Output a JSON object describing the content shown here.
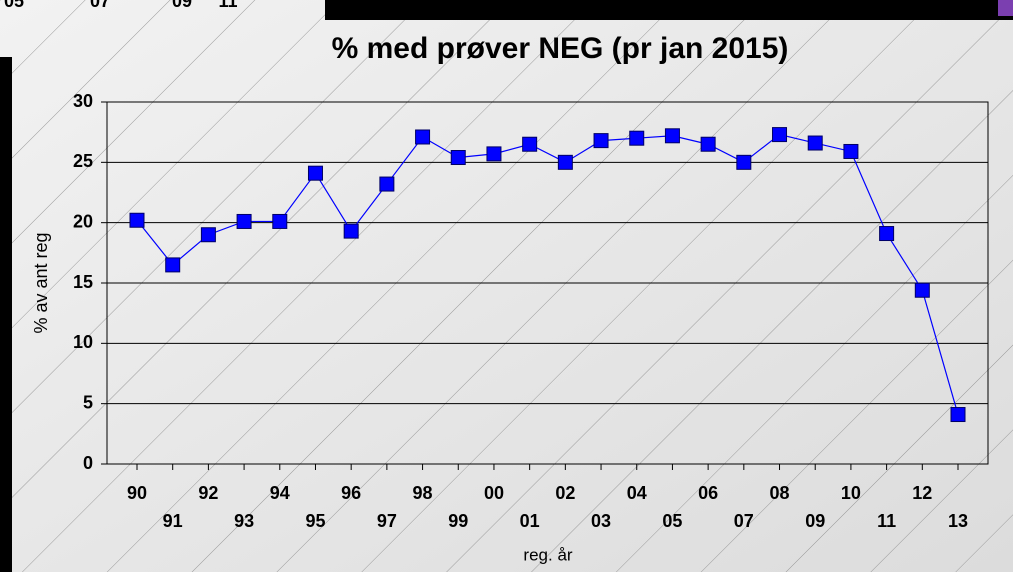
{
  "chart_data": {
    "type": "line",
    "title": "% med prøver NEG (pr jan 2015)",
    "x_label": "reg. år",
    "y_label": "% av ant reg",
    "categories": [
      "90",
      "91",
      "92",
      "93",
      "94",
      "95",
      "96",
      "97",
      "98",
      "99",
      "00",
      "01",
      "02",
      "03",
      "04",
      "05",
      "06",
      "07",
      "08",
      "09",
      "10",
      "11",
      "12",
      "13"
    ],
    "series": [
      {
        "name": "NEG",
        "color": "#0000ff",
        "values": [
          20.2,
          16.5,
          19.0,
          20.1,
          20.1,
          24.1,
          19.3,
          23.2,
          27.1,
          25.4,
          25.7,
          26.5,
          25.0,
          26.8,
          27.0,
          27.2,
          26.5,
          25.0,
          27.3,
          26.6,
          25.9,
          19.1,
          14.4,
          4.1
        ]
      }
    ],
    "ylim": [
      0,
      30
    ],
    "yticks": [
      0,
      5,
      10,
      15,
      20,
      25,
      30
    ],
    "grid": true
  },
  "background_fragment": [
    "05",
    "07",
    "09",
    "11"
  ]
}
